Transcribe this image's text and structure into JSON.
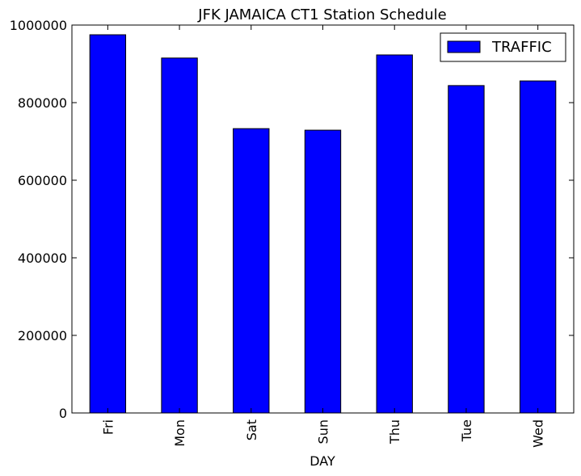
{
  "chart_data": {
    "type": "bar",
    "title": "JFK JAMAICA CT1 Station Schedule",
    "xlabel": "DAY",
    "ylabel": "",
    "categories": [
      "Fri",
      "Mon",
      "Sat",
      "Sun",
      "Thu",
      "Tue",
      "Wed"
    ],
    "series": [
      {
        "name": "TRAFFIC",
        "color": "#0000ff",
        "values": [
          975000,
          915000,
          733000,
          729000,
          923000,
          844000,
          856000
        ]
      }
    ],
    "ylim": [
      0,
      1000000
    ],
    "yticks": [
      "0",
      "200000",
      "400000",
      "600000",
      "800000",
      "1000000"
    ],
    "grid": false,
    "legend_position": "top-right"
  }
}
